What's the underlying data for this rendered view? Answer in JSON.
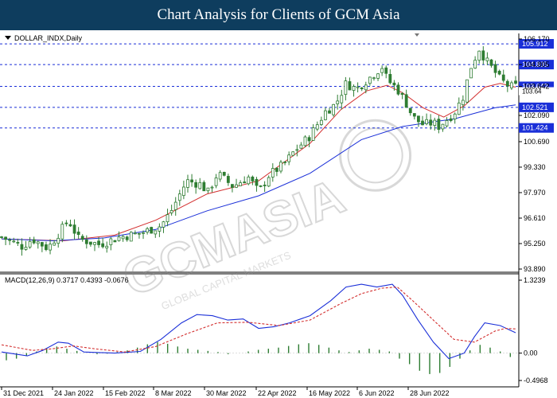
{
  "header": {
    "title": "Chart Analysis for Clients of GCM Asia"
  },
  "chart_data": [
    {
      "type": "candlestick",
      "symbol_label": "DOLLAR_INDX,Daily",
      "ylim": [
        93.89,
        106.17
      ],
      "y_ticks": [
        "106.170",
        "104.805",
        "103.642",
        "102.090",
        "100.690",
        "99.330",
        "97.970",
        "96.610",
        "95.250",
        "93.890"
      ],
      "x_ticks": [
        "31 Dec 2021",
        "24 Jan 2022",
        "15 Feb 2022",
        "8 Mar 2022",
        "30 Mar 2022",
        "22 Apr 2022",
        "16 May 2022",
        "6 Jun 2022",
        "28 Jun 2022"
      ],
      "support_resistance_levels": [
        105.912,
        104.805,
        103.642,
        102.521,
        101.424
      ],
      "level_labels": [
        "105.912",
        "104.805",
        "103.642",
        "102.521",
        "101.424"
      ],
      "close_label": "103.64",
      "colors": {
        "candle": "#2e7d32",
        "ma_short": "#d32f2f",
        "ma_long": "#1a2fd8",
        "level": "#1a2fd8",
        "level_label_bg": "#1a2fd8"
      },
      "close_path": [
        [
          0,
          95.6
        ],
        [
          4,
          95.1
        ],
        [
          6,
          95.5
        ],
        [
          9,
          95.0
        ],
        [
          13,
          96.5
        ],
        [
          15,
          95.5
        ],
        [
          19,
          95.2
        ],
        [
          23,
          95.6
        ],
        [
          27,
          95.8
        ],
        [
          31,
          96.2
        ],
        [
          33,
          97.0
        ],
        [
          36,
          98.6
        ],
        [
          39,
          98.4
        ],
        [
          40,
          97.9
        ],
        [
          42,
          99.0
        ],
        [
          45,
          98.3
        ],
        [
          48,
          98.8
        ],
        [
          50,
          98.0
        ],
        [
          52,
          98.9
        ],
        [
          55,
          99.5
        ],
        [
          57,
          100.2
        ],
        [
          60,
          101.0
        ],
        [
          63,
          102.3
        ],
        [
          65,
          102.7
        ],
        [
          67,
          103.8
        ],
        [
          69,
          103.5
        ],
        [
          72,
          104.2
        ],
        [
          74,
          104.7
        ],
        [
          75,
          104.0
        ],
        [
          77,
          103.5
        ],
        [
          79,
          102.6
        ],
        [
          80,
          102.0
        ],
        [
          82,
          101.6
        ],
        [
          84,
          101.7
        ],
        [
          85,
          101.5
        ],
        [
          88,
          102.2
        ],
        [
          90,
          103.2
        ],
        [
          91,
          104.5
        ],
        [
          93,
          105.7
        ],
        [
          94,
          105.1
        ],
        [
          96,
          104.4
        ],
        [
          97,
          104.0
        ],
        [
          99,
          103.6
        ],
        [
          100,
          103.64
        ]
      ],
      "moving_averages": [
        {
          "name": "MA short",
          "points": [
            [
              0,
              95.5
            ],
            [
              12,
              95.4
            ],
            [
              22,
              95.7
            ],
            [
              30,
              96.5
            ],
            [
              40,
              97.9
            ],
            [
              50,
              98.6
            ],
            [
              60,
              100.6
            ],
            [
              66,
              102.4
            ],
            [
              71,
              103.4
            ],
            [
              75,
              103.7
            ],
            [
              78,
              103.3
            ],
            [
              82,
              102.5
            ],
            [
              86,
              102.0
            ],
            [
              90,
              102.6
            ],
            [
              94,
              103.6
            ],
            [
              97,
              103.8
            ],
            [
              100,
              103.6
            ]
          ]
        },
        {
          "name": "MA long",
          "points": [
            [
              0,
              95.5
            ],
            [
              10,
              95.4
            ],
            [
              20,
              95.55
            ],
            [
              30,
              96.0
            ],
            [
              40,
              97.0
            ],
            [
              50,
              97.8
            ],
            [
              60,
              99.0
            ],
            [
              70,
              100.8
            ],
            [
              78,
              101.5
            ],
            [
              84,
              101.75
            ],
            [
              88,
              101.9
            ],
            [
              92,
              102.2
            ],
            [
              96,
              102.5
            ],
            [
              100,
              102.65
            ]
          ]
        }
      ]
    },
    {
      "type": "macd",
      "label": "MACD(12,26,9) 0.3717 0.4393 -0.0676",
      "ylim": [
        -0.4968,
        1.3239
      ],
      "y_ticks": [
        "1.3239",
        "0.00",
        "-0.4968"
      ],
      "macd_line": [
        [
          0,
          0.02
        ],
        [
          5,
          -0.05
        ],
        [
          8,
          0.05
        ],
        [
          11,
          0.2
        ],
        [
          13,
          0.18
        ],
        [
          16,
          0.02
        ],
        [
          22,
          0.0
        ],
        [
          27,
          0.03
        ],
        [
          31,
          0.25
        ],
        [
          35,
          0.55
        ],
        [
          38,
          0.7
        ],
        [
          41,
          0.68
        ],
        [
          44,
          0.6
        ],
        [
          47,
          0.62
        ],
        [
          50,
          0.45
        ],
        [
          53,
          0.48
        ],
        [
          56,
          0.55
        ],
        [
          60,
          0.68
        ],
        [
          64,
          0.95
        ],
        [
          67,
          1.2
        ],
        [
          70,
          1.25
        ],
        [
          73,
          1.2
        ],
        [
          76,
          1.25
        ],
        [
          78,
          1.05
        ],
        [
          81,
          0.6
        ],
        [
          84,
          0.2
        ],
        [
          87,
          -0.1
        ],
        [
          90,
          0.0
        ],
        [
          92,
          0.3
        ],
        [
          94,
          0.55
        ],
        [
          97,
          0.5
        ],
        [
          100,
          0.37
        ]
      ],
      "signal_line": [
        [
          0,
          0.15
        ],
        [
          6,
          0.05
        ],
        [
          10,
          0.08
        ],
        [
          14,
          0.13
        ],
        [
          18,
          0.08
        ],
        [
          24,
          0.02
        ],
        [
          30,
          0.12
        ],
        [
          36,
          0.35
        ],
        [
          42,
          0.55
        ],
        [
          48,
          0.56
        ],
        [
          54,
          0.5
        ],
        [
          60,
          0.6
        ],
        [
          66,
          0.9
        ],
        [
          70,
          1.08
        ],
        [
          74,
          1.18
        ],
        [
          77,
          1.2
        ],
        [
          80,
          0.95
        ],
        [
          84,
          0.6
        ],
        [
          88,
          0.25
        ],
        [
          92,
          0.2
        ],
        [
          96,
          0.4
        ],
        [
          98,
          0.45
        ],
        [
          100,
          0.44
        ]
      ],
      "histogram": [
        -0.13,
        -0.1,
        -0.05,
        0.03,
        0.09,
        0.12,
        0.08,
        0.04,
        0.0,
        -0.02,
        -0.01,
        0.02,
        0.05,
        0.1,
        0.16,
        0.2,
        0.17,
        0.12,
        0.08,
        0.06,
        0.04,
        0.02,
        -0.02,
        0.0,
        0.03,
        0.06,
        0.08,
        0.1,
        0.13,
        0.16,
        0.18,
        0.15,
        0.1,
        0.05,
        0.02,
        0.05,
        0.08,
        0.06,
        0.03,
        -0.1,
        -0.2,
        -0.32,
        -0.38,
        -0.36,
        -0.25,
        -0.1,
        0.05,
        0.15,
        0.1,
        0.03,
        -0.07
      ],
      "colors": {
        "macd": "#1a2fd8",
        "signal": "#d32f2f",
        "histogram": "#2e7d32"
      }
    }
  ]
}
